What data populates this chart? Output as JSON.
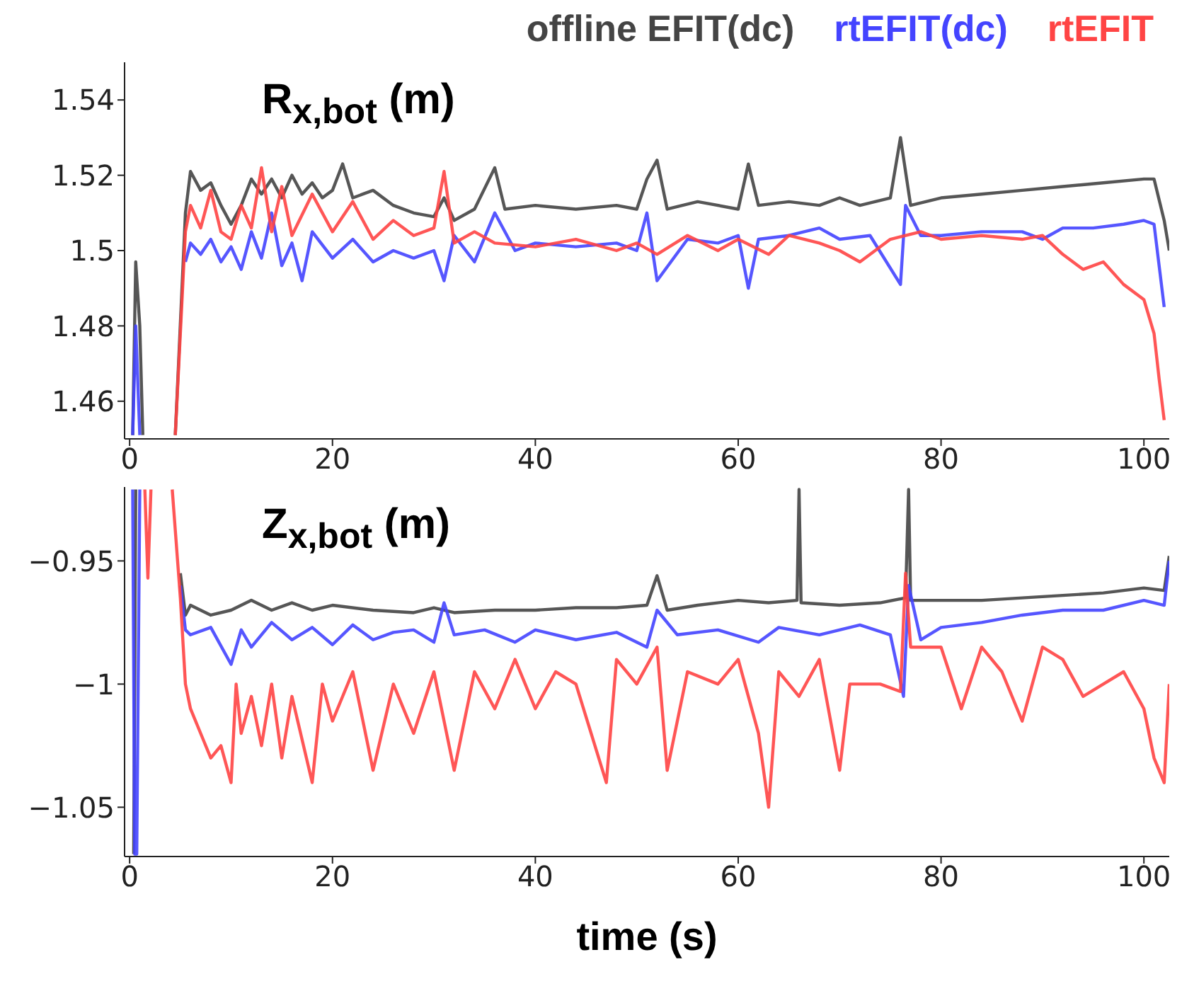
{
  "chart_data": [
    {
      "type": "line",
      "annotations": [
        "R$_{x,bot}$ (m)"
      ],
      "legend": "top right",
      "xlim": [
        -0.5,
        102.5
      ],
      "xticks": [
        0,
        20,
        40,
        60,
        80,
        100
      ],
      "ylim": [
        1.45,
        1.55
      ],
      "yticks": [
        1.46,
        1.48,
        1.5,
        1.52,
        1.54
      ],
      "series": [
        {
          "name": "offline EFIT(dc)",
          "color": "#444444",
          "x": [
            0.3,
            0.6,
            1.0,
            1.3,
            3,
            4.5,
            5.5,
            6,
            7,
            8,
            9,
            10,
            11,
            12,
            13,
            14,
            15,
            16,
            17,
            18,
            19,
            20,
            21,
            22,
            24,
            26,
            28,
            30,
            31,
            32,
            34,
            36,
            37,
            40,
            44,
            48,
            50,
            51,
            52,
            53,
            56,
            60,
            61,
            62,
            65,
            68,
            70,
            72,
            75,
            76,
            77,
            80,
            84,
            88,
            92,
            96,
            100,
            101,
            102,
            102.5
          ],
          "values": [
            1.451,
            1.497,
            1.48,
            1.451,
            null,
            1.451,
            1.51,
            1.521,
            1.516,
            1.518,
            1.512,
            1.507,
            1.512,
            1.519,
            1.515,
            1.519,
            1.514,
            1.52,
            1.515,
            1.518,
            1.514,
            1.516,
            1.523,
            1.514,
            1.516,
            1.512,
            1.51,
            1.509,
            1.514,
            1.508,
            1.511,
            1.522,
            1.511,
            1.512,
            1.511,
            1.512,
            1.511,
            1.519,
            1.524,
            1.511,
            1.513,
            1.511,
            1.523,
            1.512,
            1.513,
            1.512,
            1.514,
            1.512,
            1.514,
            1.53,
            1.512,
            1.514,
            1.515,
            1.516,
            1.517,
            1.518,
            1.519,
            1.519,
            1.508,
            1.5
          ]
        },
        {
          "name": "rtEFIT(dc)",
          "color": "#4444ff",
          "x": [
            0.3,
            0.6,
            1.0,
            3,
            4.5,
            5.5,
            6,
            7,
            8,
            9,
            10,
            11,
            12,
            13,
            14,
            15,
            16,
            17,
            18,
            20,
            22,
            24,
            26,
            28,
            30,
            31,
            32,
            34,
            36,
            38,
            40,
            44,
            48,
            50,
            51,
            52,
            55,
            58,
            60,
            61,
            62,
            65,
            68,
            70,
            73,
            76,
            76.5,
            78,
            80,
            84,
            88,
            90,
            92,
            95,
            98,
            100,
            101,
            102
          ],
          "values": [
            1.451,
            1.48,
            1.451,
            null,
            null,
            1.497,
            1.502,
            1.499,
            1.503,
            1.497,
            1.501,
            1.495,
            1.505,
            1.498,
            1.51,
            1.496,
            1.502,
            1.492,
            1.505,
            1.498,
            1.503,
            1.497,
            1.5,
            1.498,
            1.5,
            1.492,
            1.504,
            1.497,
            1.51,
            1.5,
            1.502,
            1.501,
            1.502,
            1.5,
            1.51,
            1.492,
            1.503,
            1.502,
            1.504,
            1.49,
            1.503,
            1.504,
            1.506,
            1.503,
            1.504,
            1.491,
            1.512,
            1.504,
            1.504,
            1.505,
            1.505,
            1.503,
            1.506,
            1.506,
            1.507,
            1.508,
            1.507,
            1.485
          ]
        },
        {
          "name": "rtEFIT",
          "color": "#ff4444",
          "x": [
            4.5,
            5.5,
            6,
            7,
            8,
            9,
            10,
            11,
            12,
            13,
            14,
            15,
            16,
            18,
            20,
            22,
            24,
            26,
            28,
            30,
            31,
            32,
            34,
            36,
            40,
            44,
            48,
            50,
            52,
            55,
            58,
            60,
            63,
            65,
            68,
            70,
            72,
            75,
            78,
            80,
            84,
            88,
            90,
            92,
            94,
            96,
            98,
            100,
            101,
            101.5,
            102
          ],
          "values": [
            1.451,
            1.505,
            1.512,
            1.506,
            1.516,
            1.505,
            1.503,
            1.512,
            1.506,
            1.522,
            1.505,
            1.517,
            1.504,
            1.515,
            1.505,
            1.513,
            1.503,
            1.508,
            1.504,
            1.506,
            1.521,
            1.502,
            1.505,
            1.502,
            1.501,
            1.503,
            1.5,
            1.502,
            1.499,
            1.504,
            1.5,
            1.503,
            1.499,
            1.504,
            1.502,
            1.5,
            1.497,
            1.503,
            1.505,
            1.503,
            1.504,
            1.503,
            1.504,
            1.499,
            1.495,
            1.497,
            1.491,
            1.487,
            1.478,
            1.466,
            1.455
          ]
        }
      ]
    },
    {
      "type": "line",
      "annotations": [
        "Z$_{x,bot}$ (m)"
      ],
      "xlabel": "time (s)",
      "xlim": [
        -0.5,
        102.5
      ],
      "xticks": [
        0,
        20,
        40,
        60,
        80,
        100
      ],
      "ylim": [
        -1.07,
        -0.92
      ],
      "yticks": [
        -1.05,
        -1.0,
        -0.95
      ],
      "series": [
        {
          "color": "#444444",
          "x": [
            0.4,
            0.6,
            3,
            4.2,
            5,
            5.5,
            6,
            8,
            10,
            12,
            14,
            16,
            18,
            20,
            24,
            28,
            30,
            32,
            36,
            40,
            44,
            48,
            51,
            52,
            53,
            56,
            60,
            63,
            65.8,
            66,
            66.2,
            70,
            74,
            76.5,
            76.8,
            77,
            80,
            84,
            88,
            92,
            96,
            100,
            102,
            102.5
          ],
          "values": [
            -1.069,
            -0.921,
            null,
            null,
            -0.955,
            -0.972,
            -0.968,
            -0.972,
            -0.97,
            -0.966,
            -0.97,
            -0.967,
            -0.97,
            -0.968,
            -0.97,
            -0.971,
            -0.969,
            -0.971,
            -0.97,
            -0.97,
            -0.969,
            -0.969,
            -0.968,
            -0.956,
            -0.97,
            -0.968,
            -0.966,
            -0.967,
            -0.966,
            -0.921,
            -0.967,
            -0.968,
            -0.967,
            -0.965,
            -0.921,
            -0.966,
            -0.966,
            -0.966,
            -0.965,
            -0.964,
            -0.963,
            -0.961,
            -0.962,
            -0.948
          ]
        },
        {
          "color": "#4444ff",
          "x": [
            0.3,
            0.5,
            0.7,
            1.0,
            3,
            4.2,
            5,
            5.5,
            6,
            8,
            10,
            11,
            12,
            14,
            16,
            18,
            20,
            22,
            24,
            26,
            28,
            30,
            31,
            32,
            35,
            38,
            40,
            44,
            48,
            51,
            52,
            54,
            58,
            62,
            64,
            68,
            72,
            75,
            76.3,
            76.8,
            78,
            80,
            84,
            88,
            92,
            96,
            100,
            102,
            102.5
          ],
          "values": [
            -0.921,
            -1.069,
            -1.069,
            -0.921,
            null,
            null,
            -0.96,
            -0.978,
            -0.98,
            -0.977,
            -0.992,
            -0.978,
            -0.985,
            -0.975,
            -0.982,
            -0.977,
            -0.984,
            -0.976,
            -0.982,
            -0.979,
            -0.978,
            -0.983,
            -0.967,
            -0.98,
            -0.978,
            -0.983,
            -0.978,
            -0.982,
            -0.979,
            -0.985,
            -0.97,
            -0.98,
            -0.978,
            -0.983,
            -0.977,
            -0.98,
            -0.976,
            -0.98,
            -1.005,
            -0.96,
            -0.982,
            -0.977,
            -0.975,
            -0.972,
            -0.97,
            -0.97,
            -0.966,
            -0.968,
            -0.95
          ]
        },
        {
          "color": "#ff4444",
          "x": [
            1.5,
            1.8,
            2.1,
            3,
            4.2,
            5,
            5.5,
            6,
            7,
            8,
            9,
            10,
            10.5,
            11,
            12,
            13,
            14,
            15,
            16,
            18,
            19,
            20,
            22,
            24,
            26,
            28,
            30,
            32,
            34,
            36,
            38,
            40,
            42,
            44,
            47,
            48,
            50,
            52,
            53,
            55,
            58,
            60,
            62,
            63,
            64,
            66,
            68,
            70,
            71,
            74,
            76,
            76.5,
            77,
            80,
            82,
            84,
            86,
            88,
            90,
            92,
            94,
            96,
            98,
            100,
            101,
            102,
            102.5
          ],
          "values": [
            -0.921,
            -0.957,
            -0.921,
            null,
            -0.921,
            -0.965,
            -1.0,
            -1.01,
            -1.02,
            -1.03,
            -1.025,
            -1.04,
            -1.0,
            -1.02,
            -1.005,
            -1.025,
            -1.0,
            -1.03,
            -1.005,
            -1.04,
            -1.0,
            -1.015,
            -0.995,
            -1.035,
            -1.0,
            -1.02,
            -0.995,
            -1.035,
            -0.995,
            -1.01,
            -0.99,
            -1.01,
            -0.995,
            -1.0,
            -1.04,
            -0.99,
            -1.0,
            -0.985,
            -1.035,
            -0.995,
            -1.0,
            -0.99,
            -1.02,
            -1.05,
            -0.995,
            -1.005,
            -0.99,
            -1.035,
            -1.0,
            -1.0,
            -1.003,
            -0.955,
            -0.985,
            -0.985,
            -1.01,
            -0.985,
            -0.995,
            -1.015,
            -0.985,
            -0.99,
            -1.005,
            -1.0,
            -0.995,
            -1.01,
            -1.03,
            -1.04,
            -1.0
          ]
        }
      ]
    }
  ]
}
